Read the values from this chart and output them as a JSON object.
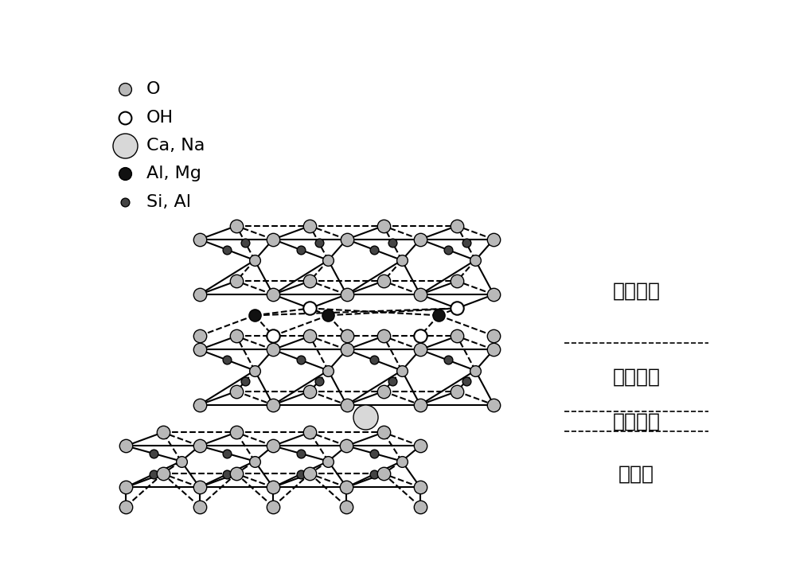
{
  "node_gray": "#b8b8b8",
  "node_dark": "#111111",
  "node_medium": "#444444",
  "node_light": "#d8d8d8",
  "layer_labels": [
    "四面体层",
    "八面体层",
    "四面体层",
    "层间域"
  ],
  "legend_items": [
    {
      "label": "O",
      "type": "gray",
      "sz": 130
    },
    {
      "label": "OH",
      "type": "open",
      "sz": 130
    },
    {
      "label": "Ca, Na",
      "type": "light",
      "sz": 500
    },
    {
      "label": "Al, Mg",
      "type": "dark",
      "sz": 130
    },
    {
      "label": "Si, Al",
      "type": "medium",
      "sz": 60
    }
  ]
}
